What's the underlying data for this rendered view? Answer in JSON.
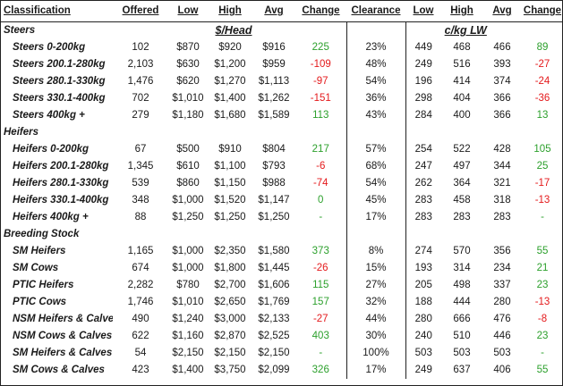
{
  "headers": {
    "classification": "Classification",
    "offered": "Offered",
    "low": "Low",
    "high": "High",
    "avg": "Avg",
    "change": "Change",
    "clearance": "Clearance",
    "low2": "Low",
    "high2": "High",
    "avg2": "Avg",
    "change2": "Change"
  },
  "units": {
    "head": "$/Head",
    "lw": "c/kg LW"
  },
  "sections": [
    {
      "name": "Steers",
      "rows": [
        {
          "label": "Steers 0-200kg",
          "offered": "102",
          "low": "$870",
          "high": "$920",
          "avg": "$916",
          "change": "225",
          "change_dir": "up",
          "clearance": "23%",
          "low2": "449",
          "high2": "468",
          "avg2": "466",
          "change2": "89",
          "change2_dir": "up"
        },
        {
          "label": "Steers 200.1-280kg",
          "offered": "2,103",
          "low": "$630",
          "high": "$1,200",
          "avg": "$959",
          "change": "-109",
          "change_dir": "down",
          "clearance": "48%",
          "low2": "249",
          "high2": "516",
          "avg2": "393",
          "change2": "-27",
          "change2_dir": "down"
        },
        {
          "label": "Steers 280.1-330kg",
          "offered": "1,476",
          "low": "$620",
          "high": "$1,270",
          "avg": "$1,113",
          "change": "-97",
          "change_dir": "down",
          "clearance": "54%",
          "low2": "196",
          "high2": "414",
          "avg2": "374",
          "change2": "-24",
          "change2_dir": "down"
        },
        {
          "label": "Steers 330.1-400kg",
          "offered": "702",
          "low": "$1,010",
          "high": "$1,400",
          "avg": "$1,262",
          "change": "-151",
          "change_dir": "down",
          "clearance": "36%",
          "low2": "298",
          "high2": "404",
          "avg2": "366",
          "change2": "-36",
          "change2_dir": "down"
        },
        {
          "label": "Steers 400kg +",
          "offered": "279",
          "low": "$1,180",
          "high": "$1,680",
          "avg": "$1,589",
          "change": "113",
          "change_dir": "up",
          "clearance": "43%",
          "low2": "284",
          "high2": "400",
          "avg2": "366",
          "change2": "13",
          "change2_dir": "up"
        }
      ]
    },
    {
      "name": "Heifers",
      "rows": [
        {
          "label": "Heifers 0-200kg",
          "offered": "67",
          "low": "$500",
          "high": "$910",
          "avg": "$804",
          "change": "217",
          "change_dir": "up",
          "clearance": "57%",
          "low2": "254",
          "high2": "522",
          "avg2": "428",
          "change2": "105",
          "change2_dir": "up"
        },
        {
          "label": "Heifers 200.1-280kg",
          "offered": "1,345",
          "low": "$610",
          "high": "$1,100",
          "avg": "$793",
          "change": "-6",
          "change_dir": "down",
          "clearance": "68%",
          "low2": "247",
          "high2": "497",
          "avg2": "344",
          "change2": "25",
          "change2_dir": "up"
        },
        {
          "label": "Heifers 280.1-330kg",
          "offered": "539",
          "low": "$860",
          "high": "$1,150",
          "avg": "$988",
          "change": "-74",
          "change_dir": "down",
          "clearance": "54%",
          "low2": "262",
          "high2": "364",
          "avg2": "321",
          "change2": "-17",
          "change2_dir": "down"
        },
        {
          "label": "Heifers 330.1-400kg",
          "offered": "348",
          "low": "$1,000",
          "high": "$1,520",
          "avg": "$1,147",
          "change": "0",
          "change_dir": "up",
          "clearance": "45%",
          "low2": "283",
          "high2": "458",
          "avg2": "318",
          "change2": "-13",
          "change2_dir": "down"
        },
        {
          "label": "Heifers 400kg +",
          "offered": "88",
          "low": "$1,250",
          "high": "$1,250",
          "avg": "$1,250",
          "change": "-",
          "change_dir": "flat",
          "clearance": "17%",
          "low2": "283",
          "high2": "283",
          "avg2": "283",
          "change2": "-",
          "change2_dir": "flat"
        }
      ]
    },
    {
      "name": "Breeding Stock",
      "rows": [
        {
          "label": "SM Heifers",
          "offered": "1,165",
          "low": "$1,000",
          "high": "$2,350",
          "avg": "$1,580",
          "change": "373",
          "change_dir": "up",
          "clearance": "8%",
          "low2": "274",
          "high2": "570",
          "avg2": "356",
          "change2": "55",
          "change2_dir": "up"
        },
        {
          "label": "SM Cows",
          "offered": "674",
          "low": "$1,000",
          "high": "$1,800",
          "avg": "$1,445",
          "change": "-26",
          "change_dir": "down",
          "clearance": "15%",
          "low2": "193",
          "high2": "314",
          "avg2": "234",
          "change2": "21",
          "change2_dir": "up"
        },
        {
          "label": "PTIC Heifers",
          "offered": "2,282",
          "low": "$780",
          "high": "$2,700",
          "avg": "$1,606",
          "change": "115",
          "change_dir": "up",
          "clearance": "27%",
          "low2": "205",
          "high2": "498",
          "avg2": "337",
          "change2": "23",
          "change2_dir": "up"
        },
        {
          "label": "PTIC Cows",
          "offered": "1,746",
          "low": "$1,010",
          "high": "$2,650",
          "avg": "$1,769",
          "change": "157",
          "change_dir": "up",
          "clearance": "32%",
          "low2": "188",
          "high2": "444",
          "avg2": "280",
          "change2": "-13",
          "change2_dir": "down"
        },
        {
          "label": "NSM Heifers & Calves",
          "offered": "490",
          "low": "$1,240",
          "high": "$3,000",
          "avg": "$2,133",
          "change": "-27",
          "change_dir": "down",
          "clearance": "44%",
          "low2": "280",
          "high2": "666",
          "avg2": "476",
          "change2": "-8",
          "change2_dir": "down"
        },
        {
          "label": "NSM Cows & Calves",
          "offered": "622",
          "low": "$1,160",
          "high": "$2,870",
          "avg": "$2,525",
          "change": "403",
          "change_dir": "up",
          "clearance": "30%",
          "low2": "240",
          "high2": "510",
          "avg2": "446",
          "change2": "23",
          "change2_dir": "up"
        },
        {
          "label": "SM Heifers & Calves",
          "offered": "54",
          "low": "$2,150",
          "high": "$2,150",
          "avg": "$2,150",
          "change": "-",
          "change_dir": "flat",
          "clearance": "100%",
          "low2": "503",
          "high2": "503",
          "avg2": "503",
          "change2": "-",
          "change2_dir": "flat"
        },
        {
          "label": "SM Cows & Calves",
          "offered": "423",
          "low": "$1,400",
          "high": "$3,750",
          "avg": "$2,099",
          "change": "326",
          "change_dir": "up",
          "clearance": "17%",
          "low2": "249",
          "high2": "637",
          "avg2": "406",
          "change2": "55",
          "change2_dir": "up"
        }
      ]
    }
  ]
}
